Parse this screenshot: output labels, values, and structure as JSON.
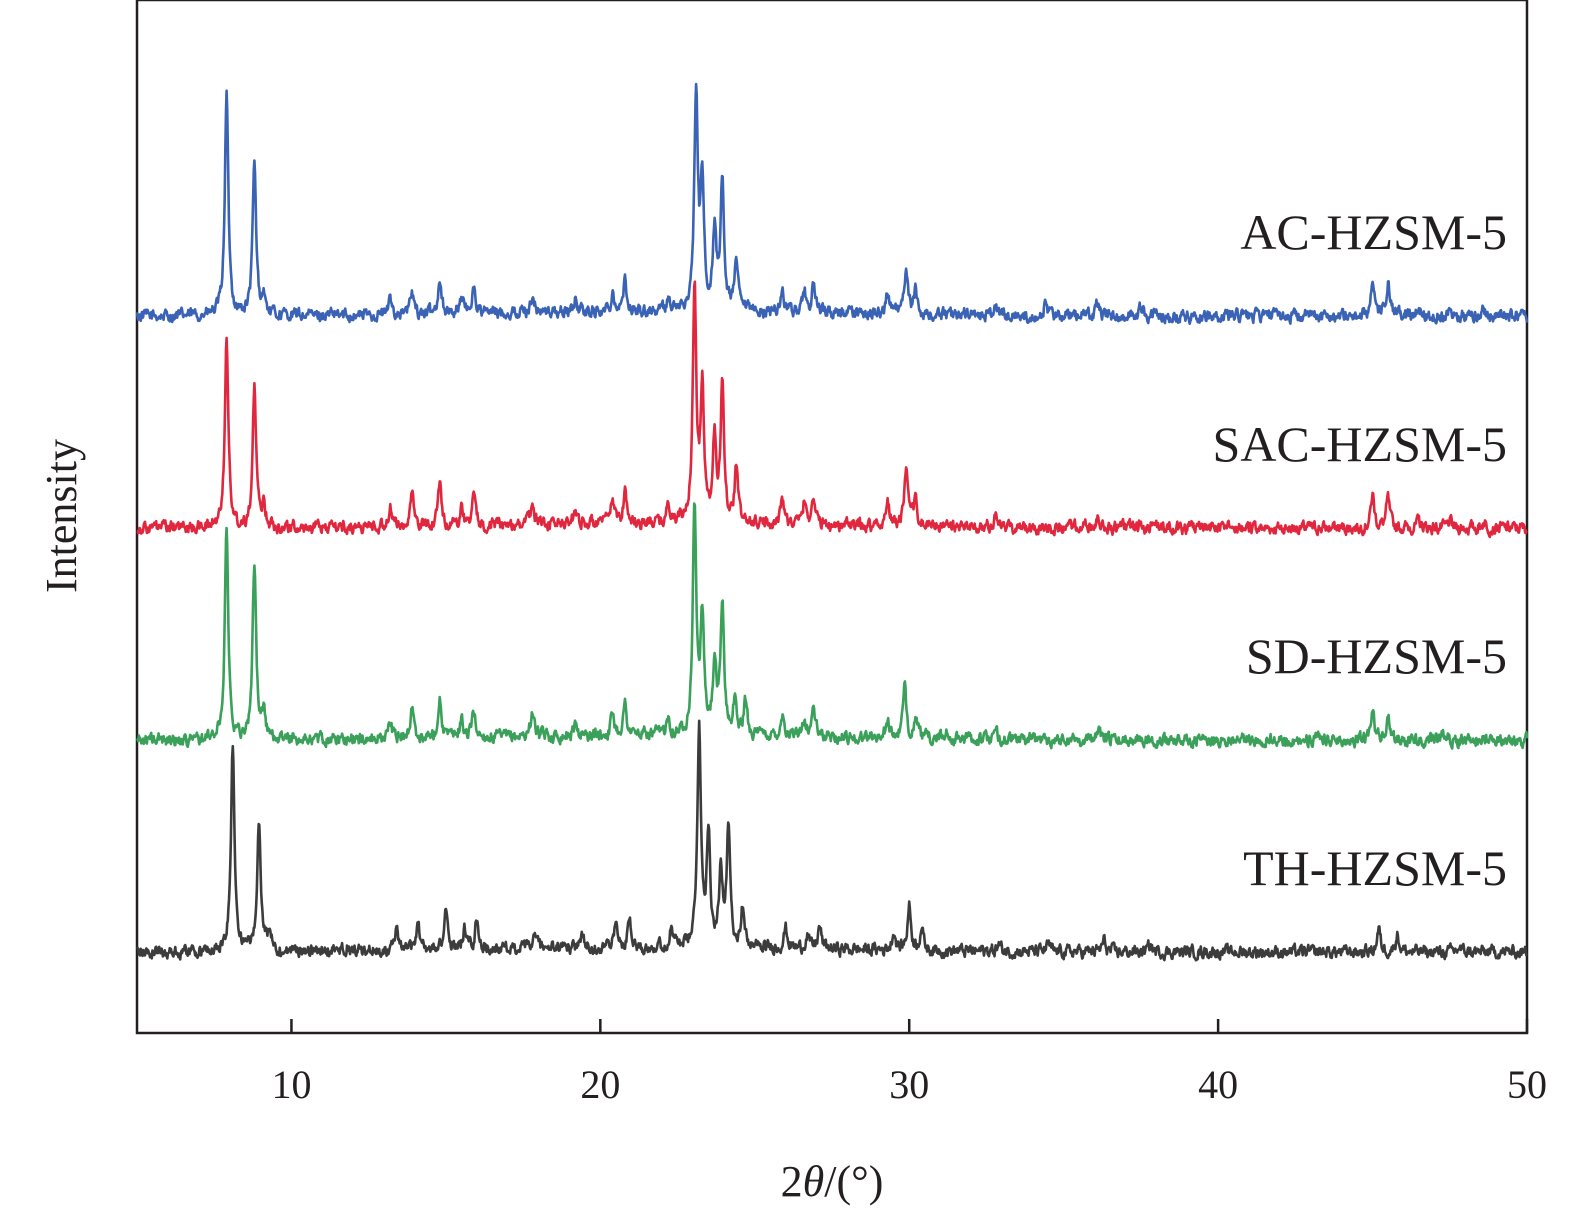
{
  "chart_data": {
    "type": "line",
    "xlabel_prefix": "2",
    "xlabel_theta": "θ",
    "xlabel_suffix": "/(°)",
    "ylabel": "Intensity",
    "xlim": [
      5,
      50
    ],
    "xticks": [
      10,
      20,
      30,
      40,
      50
    ],
    "yticks_shown": false,
    "grid": false,
    "legend": "labels beside curves, right",
    "series": [
      {
        "name": "AC-HZSM-5",
        "color": "#3a63b5",
        "offset": 3,
        "peaks": [
          {
            "x": 7.9,
            "h": 1.0
          },
          {
            "x": 8.8,
            "h": 0.68
          },
          {
            "x": 9.1,
            "h": 0.08
          },
          {
            "x": 13.2,
            "h": 0.07
          },
          {
            "x": 13.9,
            "h": 0.1
          },
          {
            "x": 14.8,
            "h": 0.16
          },
          {
            "x": 15.5,
            "h": 0.08
          },
          {
            "x": 15.9,
            "h": 0.12
          },
          {
            "x": 17.8,
            "h": 0.08
          },
          {
            "x": 19.2,
            "h": 0.06
          },
          {
            "x": 20.4,
            "h": 0.09
          },
          {
            "x": 20.8,
            "h": 0.13
          },
          {
            "x": 22.2,
            "h": 0.06
          },
          {
            "x": 23.1,
            "h": 0.98
          },
          {
            "x": 23.3,
            "h": 0.55
          },
          {
            "x": 23.7,
            "h": 0.35
          },
          {
            "x": 23.95,
            "h": 0.58
          },
          {
            "x": 24.4,
            "h": 0.22
          },
          {
            "x": 25.9,
            "h": 0.1
          },
          {
            "x": 26.6,
            "h": 0.1
          },
          {
            "x": 26.9,
            "h": 0.12
          },
          {
            "x": 29.3,
            "h": 0.1
          },
          {
            "x": 29.9,
            "h": 0.2
          },
          {
            "x": 30.2,
            "h": 0.1
          },
          {
            "x": 32.8,
            "h": 0.04
          },
          {
            "x": 34.4,
            "h": 0.04
          },
          {
            "x": 36.1,
            "h": 0.06
          },
          {
            "x": 37.5,
            "h": 0.04
          },
          {
            "x": 45.0,
            "h": 0.15
          },
          {
            "x": 45.5,
            "h": 0.15
          },
          {
            "x": 46.5,
            "h": 0.03
          },
          {
            "x": 47.5,
            "h": 0.04
          },
          {
            "x": 48.6,
            "h": 0.03
          }
        ]
      },
      {
        "name": "SAC-HZSM-5",
        "color": "#e0273e",
        "offset": 2,
        "peaks": [
          {
            "x": 7.9,
            "h": 0.87
          },
          {
            "x": 8.8,
            "h": 0.63
          },
          {
            "x": 9.1,
            "h": 0.1
          },
          {
            "x": 13.2,
            "h": 0.08
          },
          {
            "x": 13.9,
            "h": 0.14
          },
          {
            "x": 14.8,
            "h": 0.19
          },
          {
            "x": 15.5,
            "h": 0.08
          },
          {
            "x": 15.9,
            "h": 0.13
          },
          {
            "x": 17.8,
            "h": 0.11
          },
          {
            "x": 19.2,
            "h": 0.07
          },
          {
            "x": 20.4,
            "h": 0.11
          },
          {
            "x": 20.8,
            "h": 0.15
          },
          {
            "x": 22.2,
            "h": 0.08
          },
          {
            "x": 23.05,
            "h": 1.03
          },
          {
            "x": 23.3,
            "h": 0.6
          },
          {
            "x": 23.7,
            "h": 0.38
          },
          {
            "x": 23.95,
            "h": 0.62
          },
          {
            "x": 24.4,
            "h": 0.24
          },
          {
            "x": 25.9,
            "h": 0.12
          },
          {
            "x": 26.6,
            "h": 0.1
          },
          {
            "x": 26.9,
            "h": 0.13
          },
          {
            "x": 29.3,
            "h": 0.11
          },
          {
            "x": 29.9,
            "h": 0.24
          },
          {
            "x": 30.2,
            "h": 0.12
          },
          {
            "x": 32.8,
            "h": 0.05
          },
          {
            "x": 36.1,
            "h": 0.05
          },
          {
            "x": 37.5,
            "h": 0.04
          },
          {
            "x": 45.0,
            "h": 0.15
          },
          {
            "x": 45.5,
            "h": 0.13
          },
          {
            "x": 46.5,
            "h": 0.03
          },
          {
            "x": 47.5,
            "h": 0.03
          },
          {
            "x": 48.6,
            "h": 0.03
          }
        ]
      },
      {
        "name": "SD-HZSM-5",
        "color": "#3aa05a",
        "offset": 1,
        "peaks": [
          {
            "x": 7.9,
            "h": 0.95
          },
          {
            "x": 8.8,
            "h": 0.8
          },
          {
            "x": 9.1,
            "h": 0.12
          },
          {
            "x": 13.2,
            "h": 0.08
          },
          {
            "x": 13.9,
            "h": 0.13
          },
          {
            "x": 14.8,
            "h": 0.18
          },
          {
            "x": 15.5,
            "h": 0.08
          },
          {
            "x": 15.9,
            "h": 0.12
          },
          {
            "x": 17.8,
            "h": 0.12
          },
          {
            "x": 19.2,
            "h": 0.06
          },
          {
            "x": 20.4,
            "h": 0.1
          },
          {
            "x": 20.8,
            "h": 0.14
          },
          {
            "x": 22.2,
            "h": 0.08
          },
          {
            "x": 23.05,
            "h": 1.03
          },
          {
            "x": 23.3,
            "h": 0.52
          },
          {
            "x": 23.7,
            "h": 0.32
          },
          {
            "x": 23.95,
            "h": 0.58
          },
          {
            "x": 24.35,
            "h": 0.15
          },
          {
            "x": 24.7,
            "h": 0.15
          },
          {
            "x": 25.9,
            "h": 0.1
          },
          {
            "x": 26.6,
            "h": 0.08
          },
          {
            "x": 26.9,
            "h": 0.13
          },
          {
            "x": 29.3,
            "h": 0.08
          },
          {
            "x": 29.85,
            "h": 0.22
          },
          {
            "x": 30.2,
            "h": 0.09
          },
          {
            "x": 31.2,
            "h": 0.03
          },
          {
            "x": 32.8,
            "h": 0.03
          },
          {
            "x": 36.1,
            "h": 0.05
          },
          {
            "x": 37.5,
            "h": 0.03
          },
          {
            "x": 45.0,
            "h": 0.13
          },
          {
            "x": 45.5,
            "h": 0.09
          },
          {
            "x": 47.3,
            "h": 0.03
          },
          {
            "x": 48.6,
            "h": 0.02
          }
        ]
      },
      {
        "name": "TH-HZSM-5",
        "color": "#3c3c3c",
        "offset": 0,
        "peaks": [
          {
            "x": 8.1,
            "h": 0.94
          },
          {
            "x": 8.95,
            "h": 0.59
          },
          {
            "x": 9.3,
            "h": 0.1
          },
          {
            "x": 11.8,
            "h": 0.02
          },
          {
            "x": 13.4,
            "h": 0.08
          },
          {
            "x": 14.1,
            "h": 0.13
          },
          {
            "x": 15.0,
            "h": 0.19
          },
          {
            "x": 15.6,
            "h": 0.09
          },
          {
            "x": 16.0,
            "h": 0.13
          },
          {
            "x": 17.9,
            "h": 0.07
          },
          {
            "x": 19.4,
            "h": 0.06
          },
          {
            "x": 20.5,
            "h": 0.1
          },
          {
            "x": 20.95,
            "h": 0.13
          },
          {
            "x": 22.3,
            "h": 0.08
          },
          {
            "x": 23.2,
            "h": 1.0
          },
          {
            "x": 23.5,
            "h": 0.52
          },
          {
            "x": 23.9,
            "h": 0.32
          },
          {
            "x": 24.15,
            "h": 0.53
          },
          {
            "x": 24.6,
            "h": 0.18
          },
          {
            "x": 26.0,
            "h": 0.09
          },
          {
            "x": 26.7,
            "h": 0.06
          },
          {
            "x": 27.1,
            "h": 0.1
          },
          {
            "x": 29.5,
            "h": 0.08
          },
          {
            "x": 30.0,
            "h": 0.2
          },
          {
            "x": 30.4,
            "h": 0.1
          },
          {
            "x": 32.9,
            "h": 0.03
          },
          {
            "x": 34.5,
            "h": 0.03
          },
          {
            "x": 36.3,
            "h": 0.05
          },
          {
            "x": 37.8,
            "h": 0.03
          },
          {
            "x": 45.2,
            "h": 0.1
          },
          {
            "x": 45.8,
            "h": 0.08
          },
          {
            "x": 47.8,
            "h": 0.02
          }
        ]
      }
    ]
  }
}
